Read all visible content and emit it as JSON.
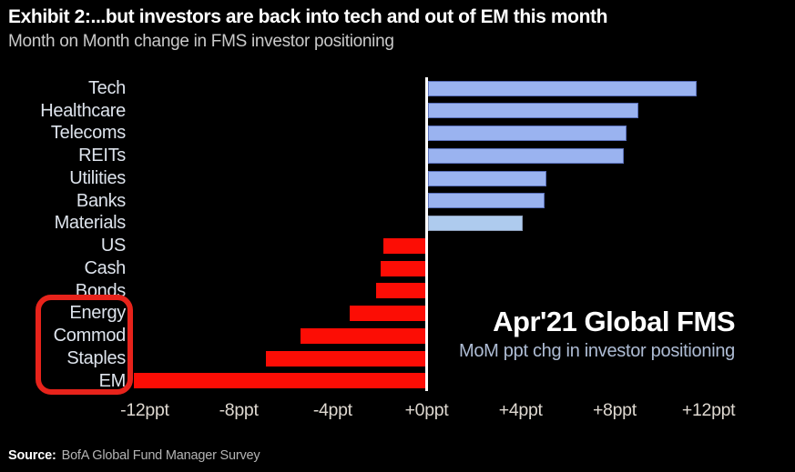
{
  "header": {
    "title": "Exhibit 2:...but investors are back into tech and out of EM this month",
    "subtitle": "Month on Month change in FMS investor positioning"
  },
  "annotation": {
    "line1": "Apr'21 Global FMS",
    "line2": "MoM ppt chg in investor positioning"
  },
  "source": {
    "label": "Source:",
    "text": "BofA Global Fund Manager Survey"
  },
  "colors": {
    "background": "#000000",
    "positive_bar": "#9ab3f0",
    "positive_bar_border": "#5a70ba",
    "materials_bar": "#aecbee",
    "materials_bar_border": "#8b9cb8",
    "negative_bar": "#fc0d05",
    "negative_bar_border": "#fc0d05",
    "zero_line": "#ffffff",
    "highlight_box": "#e7231b"
  },
  "chart_data": {
    "type": "bar",
    "orientation": "horizontal",
    "title": "Month on Month change in FMS investor positioning",
    "xlabel": "MoM ppt chg in investor positioning",
    "unit": "ppt",
    "categories": [
      "Tech",
      "Healthcare",
      "Telecoms",
      "REITs",
      "Utilities",
      "Banks",
      "Materials",
      "US",
      "Cash",
      "Bonds",
      "Energy",
      "Commod",
      "Staples",
      "EM"
    ],
    "values": [
      11.5,
      9.0,
      8.5,
      8.4,
      5.1,
      5.0,
      4.1,
      -1.8,
      -1.9,
      -2.1,
      -3.2,
      -5.3,
      -6.8,
      -12.4
    ],
    "bar_colors": [
      "#9ab3f0",
      "#9ab3f0",
      "#9ab3f0",
      "#9ab3f0",
      "#9ab3f0",
      "#9ab3f0",
      "#aecbee",
      "#fc0d05",
      "#fc0d05",
      "#fc0d05",
      "#fc0d05",
      "#fc0d05",
      "#fc0d05",
      "#fc0d05"
    ],
    "bar_borders": [
      "#5a70ba",
      "#5a70ba",
      "#5a70ba",
      "#5a70ba",
      "#5a70ba",
      "#5a70ba",
      "#8b9cb8",
      "#fc0d05",
      "#fc0d05",
      "#fc0d05",
      "#fc0d05",
      "#fc0d05",
      "#fc0d05",
      "#fc0d05"
    ],
    "x_ticks": [
      {
        "label": "-12ppt",
        "value": -12
      },
      {
        "label": "-8ppt",
        "value": -8
      },
      {
        "label": "-4ppt",
        "value": -4
      },
      {
        "label": "+0ppt",
        "value": 0
      },
      {
        "label": "+4ppt",
        "value": 4
      },
      {
        "label": "+8ppt",
        "value": 8
      },
      {
        "label": "+12ppt",
        "value": 12
      }
    ],
    "xlim": [
      -14.5,
      15.7
    ],
    "grid": false,
    "legend": false,
    "highlighted_categories": [
      "Energy",
      "Commod",
      "Staples",
      "EM"
    ]
  }
}
